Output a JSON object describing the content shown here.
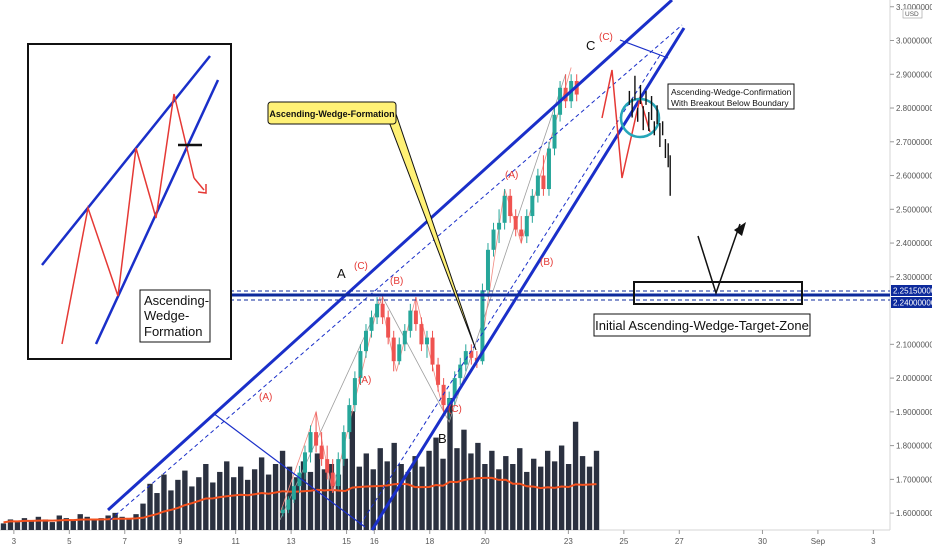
{
  "chart_data": {
    "type": "candlestick",
    "y_axis": {
      "currency_badge": "USD",
      "ticks": [
        "1.60000000",
        "1.70000000",
        "1.80000000",
        "1.90000000",
        "2.00000000",
        "2.10000000",
        "2.30000000",
        "2.40000000",
        "2.50000000",
        "2.60000000",
        "2.70000000",
        "2.80000000",
        "2.90000000",
        "3.00000000",
        "3.10000000"
      ],
      "tick_values": [
        1.6,
        1.7,
        1.8,
        1.9,
        2.0,
        2.1,
        2.3,
        2.4,
        2.5,
        2.6,
        2.7,
        2.8,
        2.9,
        3.0,
        3.1
      ],
      "ylim": [
        1.55,
        3.12
      ],
      "price_tags": [
        {
          "label": "2.25150000",
          "value": 2.2515
        },
        {
          "label": "2.24000000",
          "value": 2.24
        }
      ]
    },
    "x_axis": {
      "ticks": [
        "3",
        "5",
        "7",
        "9",
        "11",
        "13",
        "15",
        "16",
        "18",
        "20",
        "23",
        "25",
        "27",
        "30",
        "Sep",
        "3"
      ],
      "tick_index": [
        0,
        2,
        4,
        6,
        8,
        10,
        12,
        13,
        15,
        17,
        20,
        22,
        24,
        27,
        29,
        31
      ],
      "xlim": [
        -0.5,
        31.6
      ]
    },
    "candles": [
      [
        9.7,
        1.6,
        1.62,
        1.59,
        1.61
      ],
      [
        9.9,
        1.61,
        1.65,
        1.6,
        1.64
      ],
      [
        10.1,
        1.64,
        1.7,
        1.63,
        1.68
      ],
      [
        10.3,
        1.68,
        1.74,
        1.66,
        1.72
      ],
      [
        10.5,
        1.72,
        1.8,
        1.7,
        1.78
      ],
      [
        10.7,
        1.78,
        1.86,
        1.75,
        1.84
      ],
      [
        10.9,
        1.84,
        1.9,
        1.78,
        1.8
      ],
      [
        11.1,
        1.8,
        1.84,
        1.74,
        1.76
      ],
      [
        11.3,
        1.76,
        1.8,
        1.7,
        1.72
      ],
      [
        11.5,
        1.72,
        1.76,
        1.66,
        1.68
      ],
      [
        11.7,
        1.68,
        1.78,
        1.67,
        1.76
      ],
      [
        11.9,
        1.76,
        1.86,
        1.74,
        1.84
      ],
      [
        12.1,
        1.84,
        1.94,
        1.82,
        1.92
      ],
      [
        12.3,
        1.92,
        2.02,
        1.9,
        2.0
      ],
      [
        12.5,
        2.0,
        2.1,
        1.98,
        2.08
      ],
      [
        12.7,
        2.08,
        2.16,
        2.06,
        2.14
      ],
      [
        12.9,
        2.14,
        2.2,
        2.12,
        2.18
      ],
      [
        13.1,
        2.18,
        2.24,
        2.16,
        2.22
      ],
      [
        13.3,
        2.22,
        2.25,
        2.16,
        2.18
      ],
      [
        13.5,
        2.18,
        2.2,
        2.1,
        2.12
      ],
      [
        13.7,
        2.12,
        2.14,
        2.02,
        2.05
      ],
      [
        13.9,
        2.05,
        2.12,
        2.04,
        2.1
      ],
      [
        14.1,
        2.1,
        2.16,
        2.08,
        2.14
      ],
      [
        14.3,
        2.14,
        2.22,
        2.12,
        2.2
      ],
      [
        14.5,
        2.2,
        2.24,
        2.14,
        2.16
      ],
      [
        14.7,
        2.16,
        2.18,
        2.08,
        2.1
      ],
      [
        14.9,
        2.1,
        2.14,
        2.06,
        2.12
      ],
      [
        15.1,
        2.12,
        2.14,
        2.02,
        2.04
      ],
      [
        15.3,
        2.04,
        2.06,
        1.96,
        1.98
      ],
      [
        15.5,
        1.98,
        2.0,
        1.9,
        1.92
      ],
      [
        15.7,
        1.92,
        1.96,
        1.88,
        1.94
      ],
      [
        15.9,
        1.94,
        2.02,
        1.92,
        2.0
      ],
      [
        16.1,
        2.0,
        2.06,
        1.98,
        2.04
      ],
      [
        16.3,
        2.04,
        2.1,
        2.02,
        2.08
      ],
      [
        16.5,
        2.08,
        2.1,
        2.04,
        2.06
      ],
      [
        16.7,
        2.06,
        2.08,
        2.03,
        2.05
      ],
      [
        16.9,
        2.05,
        2.28,
        2.04,
        2.26
      ],
      [
        17.1,
        2.26,
        2.4,
        2.24,
        2.38
      ],
      [
        17.3,
        2.38,
        2.46,
        2.36,
        2.44
      ],
      [
        17.5,
        2.44,
        2.5,
        2.4,
        2.46
      ],
      [
        17.7,
        2.46,
        2.56,
        2.44,
        2.54
      ],
      [
        17.9,
        2.54,
        2.56,
        2.46,
        2.48
      ],
      [
        18.1,
        2.48,
        2.5,
        2.42,
        2.44
      ],
      [
        18.3,
        2.44,
        2.48,
        2.4,
        2.42
      ],
      [
        18.5,
        2.42,
        2.5,
        2.4,
        2.48
      ],
      [
        18.7,
        2.48,
        2.56,
        2.46,
        2.54
      ],
      [
        18.9,
        2.54,
        2.62,
        2.52,
        2.6
      ],
      [
        19.1,
        2.6,
        2.66,
        2.54,
        2.56
      ],
      [
        19.3,
        2.56,
        2.7,
        2.54,
        2.68
      ],
      [
        19.5,
        2.68,
        2.8,
        2.66,
        2.78
      ],
      [
        19.7,
        2.78,
        2.88,
        2.76,
        2.86
      ],
      [
        19.9,
        2.86,
        2.9,
        2.8,
        2.82
      ],
      [
        20.1,
        2.82,
        2.9,
        2.8,
        2.88
      ],
      [
        20.3,
        2.88,
        2.9,
        2.82,
        2.84
      ]
    ],
    "projection": [
      [
        22.2,
        2.83
      ],
      [
        22.3,
        2.8
      ],
      [
        22.4,
        2.86
      ],
      [
        22.5,
        2.78
      ],
      [
        22.6,
        2.84
      ],
      [
        22.7,
        2.77
      ],
      [
        22.8,
        2.83
      ],
      [
        22.9,
        2.76
      ],
      [
        23.0,
        2.8
      ],
      [
        23.1,
        2.74
      ],
      [
        23.2,
        2.78
      ],
      [
        23.3,
        2.72
      ],
      [
        23.4,
        2.74
      ],
      [
        23.5,
        2.68
      ],
      [
        23.6,
        2.66
      ]
    ],
    "volume_bars": [
      0.05,
      0.08,
      0.06,
      0.09,
      0.07,
      0.1,
      0.08,
      0.06,
      0.11,
      0.09,
      0.07,
      0.12,
      0.1,
      0.08,
      0.09,
      0.11,
      0.13,
      0.1,
      0.09,
      0.12,
      0.2,
      0.35,
      0.28,
      0.42,
      0.3,
      0.38,
      0.45,
      0.33,
      0.4,
      0.5,
      0.36,
      0.44,
      0.52,
      0.4,
      0.48,
      0.38,
      0.46,
      0.55,
      0.42,
      0.5,
      0.6,
      0.48,
      0.4,
      0.52,
      0.44,
      0.58,
      0.46,
      0.5,
      0.42,
      0.54,
      0.9,
      0.48,
      0.58,
      0.46,
      0.62,
      0.52,
      0.66,
      0.5,
      0.44,
      0.56,
      0.48,
      0.6,
      0.7,
      0.54,
      1.0,
      0.62,
      0.76,
      0.58,
      0.66,
      0.5,
      0.6,
      0.46,
      0.56,
      0.5,
      0.62,
      0.44,
      0.54,
      0.48,
      0.6,
      0.52,
      0.64,
      0.5,
      0.82,
      0.56,
      0.48,
      0.6
    ],
    "labels": {
      "points": {
        "A": "A",
        "B": "B",
        "C": "C"
      },
      "waves": [
        "(C)",
        "(B)",
        "(A)",
        "(A)",
        "(C)",
        "(A)",
        "(B)",
        "(C)"
      ],
      "callout_formation": "Ascending-Wedge-Formation",
      "callout_confirmation_line1": "Ascending-Wedge-Confirmation",
      "callout_confirmation_line2": "With Breakout Below Boundary",
      "target_zone": "Initial Ascending-Wedge-Target-Zone",
      "inset_title_line1": "Ascending-",
      "inset_title_line2": "Wedge-",
      "inset_title_line3": "Formation"
    },
    "colors": {
      "up": "#26a69a",
      "down": "#ef5350",
      "wedge": "#1a2fc9",
      "zone": "#0d2a9c",
      "wave": "#e53935",
      "volume": "#2b3140",
      "ma": "#f4511e",
      "callout_fill": "#fff176",
      "highlight": "#26a6b8"
    }
  }
}
